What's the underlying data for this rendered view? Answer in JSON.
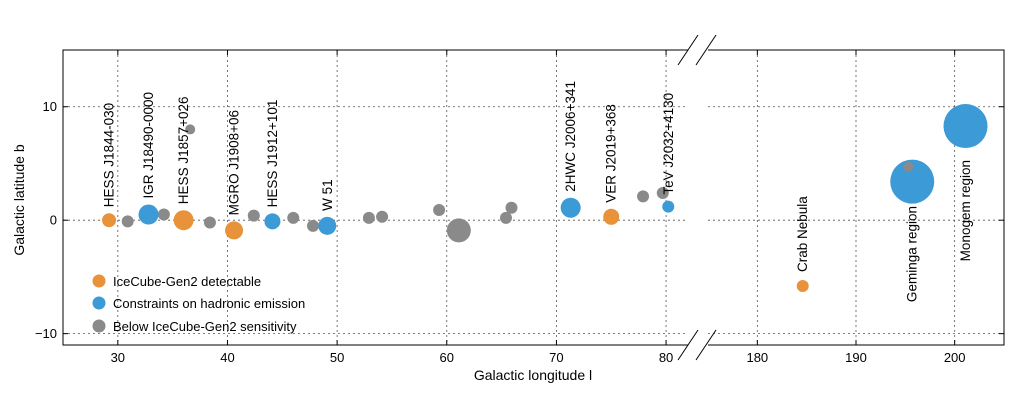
{
  "chart_data": {
    "type": "scatter",
    "xlabel": "Galactic longitude l",
    "ylabel": "Galactic latitude b",
    "ylim": [
      -11,
      15
    ],
    "panels": [
      {
        "xlim": [
          25,
          82
        ],
        "xticks": [
          30,
          40,
          50,
          60,
          70,
          80
        ]
      },
      {
        "xlim": [
          175,
          205
        ],
        "xticks": [
          180,
          190,
          200
        ]
      }
    ],
    "yticks": [
      -10,
      0,
      10
    ],
    "grid": true,
    "legend_position": "lower-left",
    "colors": {
      "detectable": "#E8923A",
      "constraints": "#3C9AD6",
      "below": "#8A8A8A"
    },
    "series": [
      {
        "key": "detectable",
        "name": "IceCube-Gen2 detectable",
        "points": [
          {
            "l": 29.2,
            "b": 0.0,
            "r": 7,
            "label": "HESS J1844-030"
          },
          {
            "l": 36.0,
            "b": 0.0,
            "r": 10,
            "label": "HESS J1857+026"
          },
          {
            "l": 40.6,
            "b": -0.9,
            "r": 9,
            "label": "MGRO J1908+06"
          },
          {
            "l": 75.0,
            "b": 0.3,
            "r": 8,
            "label": "VER J2019+368"
          },
          {
            "l": 184.6,
            "b": -5.8,
            "r": 6,
            "label": "Crab Nebula"
          }
        ]
      },
      {
        "key": "constraints",
        "name": "Constraints on hadronic emission",
        "points": [
          {
            "l": 32.8,
            "b": 0.5,
            "r": 10,
            "label": "IGR J18490-0000"
          },
          {
            "l": 44.1,
            "b": -0.1,
            "r": 8,
            "label": "HESS J1912+101"
          },
          {
            "l": 49.1,
            "b": -0.5,
            "r": 9,
            "label": "W 51"
          },
          {
            "l": 71.3,
            "b": 1.1,
            "r": 10,
            "label": "2HWC J2006+341"
          },
          {
            "l": 80.2,
            "b": 1.2,
            "r": 6,
            "label": "TeV J2032+4130"
          },
          {
            "l": 195.7,
            "b": 3.4,
            "r": 22,
            "label": "Geminga region"
          },
          {
            "l": 201.1,
            "b": 8.3,
            "r": 22,
            "label": "Monogem region"
          }
        ]
      },
      {
        "key": "below",
        "name": "Below IceCube-Gen2 sensitivity",
        "points": [
          {
            "l": 30.9,
            "b": -0.1,
            "r": 6
          },
          {
            "l": 34.2,
            "b": 0.5,
            "r": 6
          },
          {
            "l": 36.6,
            "b": 8.0,
            "r": 5
          },
          {
            "l": 38.4,
            "b": -0.2,
            "r": 6
          },
          {
            "l": 42.4,
            "b": 0.4,
            "r": 6
          },
          {
            "l": 46.0,
            "b": 0.2,
            "r": 6
          },
          {
            "l": 47.8,
            "b": -0.5,
            "r": 6
          },
          {
            "l": 52.9,
            "b": 0.2,
            "r": 6
          },
          {
            "l": 54.1,
            "b": 0.3,
            "r": 6
          },
          {
            "l": 59.3,
            "b": 0.9,
            "r": 6
          },
          {
            "l": 61.1,
            "b": -0.9,
            "r": 12
          },
          {
            "l": 65.4,
            "b": 0.2,
            "r": 6
          },
          {
            "l": 65.9,
            "b": 1.1,
            "r": 6
          },
          {
            "l": 77.9,
            "b": 2.1,
            "r": 6
          },
          {
            "l": 79.7,
            "b": 2.4,
            "r": 6
          },
          {
            "l": 195.3,
            "b": 4.7,
            "r": 5
          }
        ]
      }
    ]
  }
}
